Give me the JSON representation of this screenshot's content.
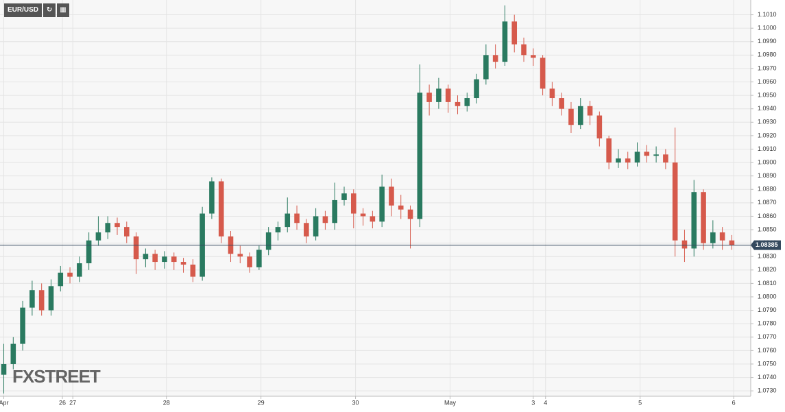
{
  "chart_data": {
    "type": "candlestick",
    "title": "EUR/USD",
    "watermark": "FXSTREET",
    "up_color": "#2a7a60",
    "down_color": "#d65a4c",
    "last_price": 1.08385,
    "last_price_color": "#34495e",
    "grid": true,
    "xlim": [
      -0.4,
      79
    ],
    "xticks": [
      {
        "value": 0,
        "label": "Apr"
      },
      {
        "value": 6.2,
        "label": "26"
      },
      {
        "value": 7.3,
        "label": "27"
      },
      {
        "value": 17.2,
        "label": "28"
      },
      {
        "value": 27.2,
        "label": "29"
      },
      {
        "value": 37.2,
        "label": "30"
      },
      {
        "value": 47.2,
        "label": "May"
      },
      {
        "value": 56.0,
        "label": "3"
      },
      {
        "value": 57.3,
        "label": "4"
      },
      {
        "value": 67.3,
        "label": "5"
      },
      {
        "value": 77.2,
        "label": "6"
      }
    ],
    "ylim": [
      1.0726,
      1.1021
    ],
    "yticks": [
      {
        "value": 1.073,
        "label": "1.0730"
      },
      {
        "value": 1.074,
        "label": "1.0740"
      },
      {
        "value": 1.075,
        "label": "1.0750"
      },
      {
        "value": 1.076,
        "label": "1.0760"
      },
      {
        "value": 1.077,
        "label": "1.0770"
      },
      {
        "value": 1.078,
        "label": "1.0780"
      },
      {
        "value": 1.079,
        "label": "1.0790"
      },
      {
        "value": 1.08,
        "label": "1.0800"
      },
      {
        "value": 1.081,
        "label": "1.0810"
      },
      {
        "value": 1.082,
        "label": "1.0820"
      },
      {
        "value": 1.083,
        "label": "1.0830"
      },
      {
        "value": 1.084,
        "label": "1.0840"
      },
      {
        "value": 1.085,
        "label": "1.0850"
      },
      {
        "value": 1.086,
        "label": "1.0860"
      },
      {
        "value": 1.087,
        "label": "1.0870"
      },
      {
        "value": 1.088,
        "label": "1.0880"
      },
      {
        "value": 1.089,
        "label": "1.0890"
      },
      {
        "value": 1.09,
        "label": "1.0900"
      },
      {
        "value": 1.091,
        "label": "1.0910"
      },
      {
        "value": 1.092,
        "label": "1.0920"
      },
      {
        "value": 1.093,
        "label": "1.0930"
      },
      {
        "value": 1.094,
        "label": "1.0940"
      },
      {
        "value": 1.095,
        "label": "1.0950"
      },
      {
        "value": 1.096,
        "label": "1.0960"
      },
      {
        "value": 1.097,
        "label": "1.0970"
      },
      {
        "value": 1.098,
        "label": "1.0980"
      },
      {
        "value": 1.099,
        "label": "1.0990"
      },
      {
        "value": 1.1,
        "label": "1.1000"
      },
      {
        "value": 1.101,
        "label": "1.1010"
      }
    ],
    "open": [
      1.0742,
      1.075,
      1.0765,
      1.0792,
      1.0805,
      1.079,
      1.0808,
      1.0818,
      1.0815,
      1.0825,
      1.0842,
      1.0848,
      1.0855,
      1.0852,
      1.0845,
      1.0828,
      1.0832,
      1.0826,
      1.083,
      1.0826,
      1.0824,
      1.0815,
      1.0862,
      1.0886,
      1.0845,
      1.0832,
      1.083,
      1.0822,
      1.0835,
      1.0848,
      1.0852,
      1.0862,
      1.0855,
      1.0845,
      1.086,
      1.0855,
      1.0872,
      1.0877,
      1.0862,
      1.086,
      1.0856,
      1.0882,
      1.0868,
      1.0865,
      1.0858,
      1.0952,
      1.0945,
      1.0955,
      1.0945,
      1.0942,
      1.0948,
      1.0962,
      1.098,
      1.0975,
      1.1005,
      1.0988,
      1.098,
      1.0978,
      1.0955,
      1.0948,
      1.094,
      1.0928,
      1.0942,
      1.0935,
      1.0918,
      1.09,
      1.0903,
      1.09,
      1.0908,
      1.0905,
      1.0906,
      1.09,
      1.0842,
      1.0836,
      1.0878,
      1.084,
      1.0848,
      1.0842
    ],
    "high": [
      1.0765,
      1.077,
      1.0797,
      1.0812,
      1.081,
      1.0813,
      1.0823,
      1.0822,
      1.083,
      1.0848,
      1.086,
      1.086,
      1.0859,
      1.0856,
      1.0848,
      1.0836,
      1.0835,
      1.0834,
      1.0833,
      1.0829,
      1.0828,
      1.0867,
      1.0889,
      1.0888,
      1.0849,
      1.0838,
      1.0833,
      1.0838,
      1.0852,
      1.0856,
      1.0874,
      1.0868,
      1.0858,
      1.0866,
      1.0864,
      1.0885,
      1.0882,
      1.088,
      1.0866,
      1.0864,
      1.0891,
      1.0888,
      1.0876,
      1.0868,
      1.0973,
      1.0958,
      1.0963,
      1.0958,
      1.095,
      1.0952,
      1.0966,
      1.0988,
      1.0988,
      1.1017,
      1.101,
      1.0993,
      1.0985,
      1.098,
      1.096,
      1.0952,
      1.0945,
      1.0948,
      1.0946,
      1.0938,
      1.092,
      1.091,
      1.0908,
      1.0915,
      1.0913,
      1.0912,
      1.091,
      1.0926,
      1.085,
      1.0887,
      1.088,
      1.0857,
      1.0852,
      1.0846
    ],
    "low": [
      1.0728,
      1.0746,
      1.076,
      1.0786,
      1.0786,
      1.0786,
      1.0804,
      1.081,
      1.0811,
      1.082,
      1.0838,
      1.0843,
      1.0846,
      1.084,
      1.0817,
      1.0822,
      1.082,
      1.0821,
      1.082,
      1.0818,
      1.0811,
      1.0812,
      1.0858,
      1.084,
      1.0826,
      1.0825,
      1.0818,
      1.082,
      1.0831,
      1.0842,
      1.0848,
      1.085,
      1.084,
      1.0842,
      1.085,
      1.085,
      1.0868,
      1.0851,
      1.0853,
      1.0851,
      1.0852,
      1.086,
      1.0858,
      1.0836,
      1.0852,
      1.0935,
      1.094,
      1.0937,
      1.0936,
      1.0938,
      1.0944,
      1.0958,
      1.097,
      1.0972,
      1.0982,
      1.0975,
      1.0972,
      1.095,
      1.0942,
      1.0935,
      1.0922,
      1.0925,
      1.0928,
      1.0912,
      1.0895,
      1.0896,
      1.0895,
      1.0897,
      1.09,
      1.09,
      1.0895,
      1.083,
      1.0826,
      1.083,
      1.0835,
      1.0836,
      1.0835,
      1.0835
    ],
    "close": [
      1.075,
      1.0765,
      1.0792,
      1.0805,
      1.079,
      1.0808,
      1.0818,
      1.0815,
      1.0825,
      1.0842,
      1.0848,
      1.0855,
      1.0852,
      1.0845,
      1.0828,
      1.0832,
      1.0826,
      1.083,
      1.0826,
      1.0824,
      1.0815,
      1.0862,
      1.0886,
      1.0845,
      1.0832,
      1.083,
      1.0822,
      1.0835,
      1.0848,
      1.0852,
      1.0862,
      1.0855,
      1.0845,
      1.086,
      1.0855,
      1.0872,
      1.0877,
      1.0862,
      1.086,
      1.0856,
      1.0882,
      1.0868,
      1.0865,
      1.0858,
      1.0952,
      1.0945,
      1.0955,
      1.0945,
      1.0942,
      1.0948,
      1.0962,
      1.098,
      1.0975,
      1.1005,
      1.0988,
      1.098,
      1.0978,
      1.0955,
      1.0948,
      1.094,
      1.0928,
      1.0942,
      1.0935,
      1.0918,
      1.09,
      1.0903,
      1.09,
      1.0908,
      1.0905,
      1.0906,
      1.09,
      1.0842,
      1.0836,
      1.0878,
      1.084,
      1.0848,
      1.0842,
      1.08385
    ]
  }
}
